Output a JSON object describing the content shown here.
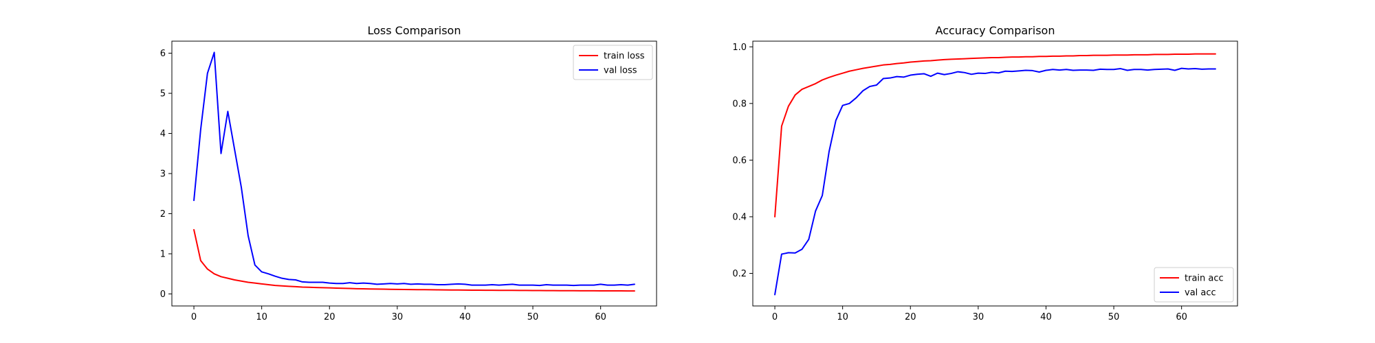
{
  "chart_data": [
    {
      "type": "line",
      "title": "Loss Comparison",
      "xlabel": "",
      "ylabel": "",
      "xlim": [
        -3.25,
        68.25
      ],
      "ylim": [
        -0.3,
        6.3
      ],
      "xticks": [
        0,
        10,
        20,
        30,
        40,
        50,
        60
      ],
      "yticks": [
        0,
        1,
        2,
        3,
        4,
        5,
        6
      ],
      "legend": "top-right",
      "grid": false,
      "x": [
        0,
        1,
        2,
        3,
        4,
        5,
        6,
        7,
        8,
        9,
        10,
        11,
        12,
        13,
        14,
        15,
        16,
        17,
        18,
        19,
        20,
        21,
        22,
        23,
        24,
        25,
        26,
        27,
        28,
        29,
        30,
        31,
        32,
        33,
        34,
        35,
        36,
        37,
        38,
        39,
        40,
        41,
        42,
        43,
        44,
        45,
        46,
        47,
        48,
        49,
        50,
        51,
        52,
        53,
        54,
        55,
        56,
        57,
        58,
        59,
        60,
        61,
        62,
        63,
        64,
        65
      ],
      "series": [
        {
          "name": "train loss",
          "color": "#ff0000",
          "values": [
            1.6,
            0.83,
            0.62,
            0.5,
            0.43,
            0.39,
            0.35,
            0.32,
            0.29,
            0.27,
            0.25,
            0.23,
            0.21,
            0.2,
            0.19,
            0.18,
            0.17,
            0.165,
            0.16,
            0.155,
            0.15,
            0.145,
            0.14,
            0.135,
            0.13,
            0.127,
            0.124,
            0.121,
            0.118,
            0.115,
            0.113,
            0.111,
            0.109,
            0.107,
            0.105,
            0.103,
            0.101,
            0.1,
            0.098,
            0.097,
            0.095,
            0.094,
            0.093,
            0.092,
            0.091,
            0.09,
            0.089,
            0.088,
            0.087,
            0.086,
            0.085,
            0.084,
            0.083,
            0.082,
            0.081,
            0.08,
            0.08,
            0.079,
            0.078,
            0.078,
            0.077,
            0.077,
            0.076,
            0.076,
            0.075,
            0.075
          ]
        },
        {
          "name": "val loss",
          "color": "#0000ff",
          "values": [
            2.33,
            4.1,
            5.5,
            6.02,
            3.5,
            4.55,
            3.6,
            2.65,
            1.45,
            0.72,
            0.55,
            0.5,
            0.44,
            0.39,
            0.36,
            0.35,
            0.3,
            0.29,
            0.29,
            0.29,
            0.27,
            0.26,
            0.26,
            0.28,
            0.26,
            0.27,
            0.26,
            0.24,
            0.25,
            0.26,
            0.25,
            0.26,
            0.24,
            0.25,
            0.24,
            0.24,
            0.23,
            0.23,
            0.24,
            0.25,
            0.24,
            0.22,
            0.22,
            0.22,
            0.23,
            0.22,
            0.23,
            0.24,
            0.22,
            0.22,
            0.22,
            0.21,
            0.23,
            0.22,
            0.22,
            0.22,
            0.21,
            0.22,
            0.22,
            0.22,
            0.24,
            0.22,
            0.22,
            0.23,
            0.22,
            0.24
          ]
        }
      ]
    },
    {
      "type": "line",
      "title": "Accuracy Comparison",
      "xlabel": "",
      "ylabel": "",
      "xlim": [
        -3.25,
        68.25
      ],
      "ylim": [
        0.085,
        1.02
      ],
      "xticks": [
        0,
        10,
        20,
        30,
        40,
        50,
        60
      ],
      "yticks": [
        0.2,
        0.4,
        0.6,
        0.8,
        1.0
      ],
      "ytick_labels": [
        "0.2",
        "0.4",
        "0.6",
        "0.8",
        "1.0"
      ],
      "legend": "bottom-right",
      "grid": false,
      "x": [
        0,
        1,
        2,
        3,
        4,
        5,
        6,
        7,
        8,
        9,
        10,
        11,
        12,
        13,
        14,
        15,
        16,
        17,
        18,
        19,
        20,
        21,
        22,
        23,
        24,
        25,
        26,
        27,
        28,
        29,
        30,
        31,
        32,
        33,
        34,
        35,
        36,
        37,
        38,
        39,
        40,
        41,
        42,
        43,
        44,
        45,
        46,
        47,
        48,
        49,
        50,
        51,
        52,
        53,
        54,
        55,
        56,
        57,
        58,
        59,
        60,
        61,
        62,
        63,
        64,
        65
      ],
      "series": [
        {
          "name": "train acc",
          "color": "#ff0000",
          "values": [
            0.4,
            0.72,
            0.79,
            0.83,
            0.85,
            0.86,
            0.87,
            0.883,
            0.892,
            0.9,
            0.907,
            0.914,
            0.919,
            0.924,
            0.928,
            0.932,
            0.936,
            0.938,
            0.941,
            0.943,
            0.946,
            0.948,
            0.95,
            0.951,
            0.953,
            0.955,
            0.956,
            0.957,
            0.958,
            0.959,
            0.96,
            0.961,
            0.962,
            0.962,
            0.963,
            0.964,
            0.964,
            0.965,
            0.965,
            0.966,
            0.966,
            0.967,
            0.967,
            0.968,
            0.968,
            0.969,
            0.969,
            0.97,
            0.97,
            0.97,
            0.971,
            0.971,
            0.971,
            0.972,
            0.972,
            0.972,
            0.973,
            0.973,
            0.973,
            0.974,
            0.974,
            0.974,
            0.975,
            0.975,
            0.975,
            0.975
          ]
        },
        {
          "name": "val acc",
          "color": "#0000ff",
          "values": [
            0.125,
            0.268,
            0.273,
            0.272,
            0.285,
            0.32,
            0.42,
            0.475,
            0.63,
            0.74,
            0.793,
            0.8,
            0.82,
            0.845,
            0.86,
            0.865,
            0.888,
            0.89,
            0.895,
            0.893,
            0.9,
            0.903,
            0.905,
            0.896,
            0.907,
            0.902,
            0.906,
            0.912,
            0.909,
            0.903,
            0.907,
            0.906,
            0.91,
            0.908,
            0.914,
            0.913,
            0.915,
            0.917,
            0.916,
            0.911,
            0.917,
            0.92,
            0.918,
            0.92,
            0.917,
            0.918,
            0.918,
            0.917,
            0.921,
            0.92,
            0.92,
            0.923,
            0.917,
            0.92,
            0.92,
            0.918,
            0.92,
            0.921,
            0.922,
            0.917,
            0.924,
            0.922,
            0.923,
            0.921,
            0.922,
            0.922
          ]
        }
      ]
    }
  ]
}
